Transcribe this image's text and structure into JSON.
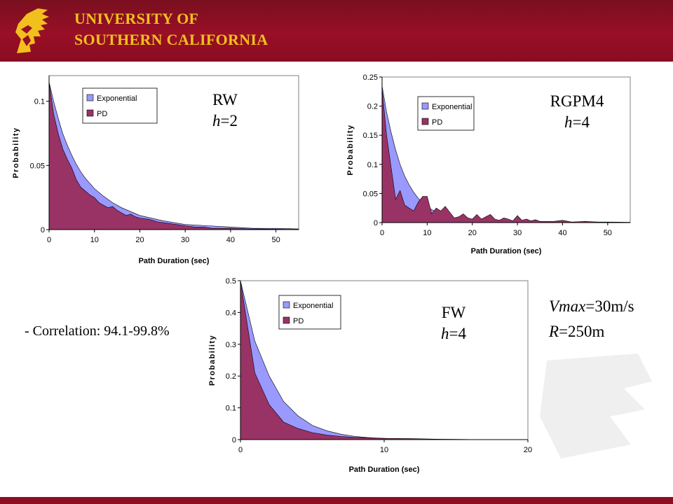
{
  "header": {
    "line1": "UNIVERSITY OF",
    "line2": "SOUTHERN CALIFORNIA"
  },
  "colors": {
    "header_bg": "#990f26",
    "header_text": "#f2c01d",
    "exponential": "#9999ff",
    "pd": "#993366"
  },
  "labels": {
    "rw": {
      "name": "RW",
      "h_var": "h",
      "h_val": "=2"
    },
    "rgpm": {
      "name": "RGPM4",
      "h_var": "h",
      "h_val": "=4"
    },
    "fw": {
      "name": "FW",
      "h_var": "h",
      "h_val": "=4"
    }
  },
  "correlation": "- Correlation: 94.1-99.8%",
  "params": {
    "vmax_var": "Vmax",
    "vmax_val": "=30m/s",
    "r_var": "R",
    "r_val": "=250m"
  },
  "chart_data": [
    {
      "type": "area",
      "xlabel": "Path Duration (sec)",
      "ylabel": "Probability",
      "xlim": [
        0,
        55
      ],
      "ylim": [
        0,
        0.12
      ],
      "xticks": [
        0,
        10,
        20,
        30,
        40,
        50
      ],
      "yticks": [
        0,
        0.05,
        0.1
      ],
      "ytick_labels": [
        "0",
        "0.05",
        "0.1"
      ],
      "legend": "top-left",
      "series": [
        {
          "name": "Exponential",
          "x": [
            0,
            1,
            2,
            3,
            4,
            5,
            6,
            7,
            8,
            10,
            12,
            14,
            16,
            18,
            20,
            25,
            30,
            35,
            40,
            45,
            50,
            55
          ],
          "values": [
            0.115,
            0.1,
            0.087,
            0.075,
            0.066,
            0.058,
            0.051,
            0.045,
            0.04,
            0.032,
            0.026,
            0.021,
            0.017,
            0.014,
            0.011,
            0.007,
            0.004,
            0.003,
            0.002,
            0.001,
            0.001,
            0.0005
          ]
        },
        {
          "name": "PD",
          "x": [
            0,
            1,
            2,
            3,
            4,
            5,
            6,
            7,
            8,
            9,
            10,
            11,
            12,
            13,
            14,
            15,
            16,
            17,
            18,
            19,
            20,
            22,
            24,
            26,
            28,
            30,
            32,
            34,
            36,
            38,
            40,
            42,
            44,
            46,
            48,
            50,
            52,
            55
          ],
          "values": [
            0.115,
            0.09,
            0.075,
            0.063,
            0.055,
            0.048,
            0.039,
            0.033,
            0.03,
            0.027,
            0.025,
            0.021,
            0.019,
            0.017,
            0.018,
            0.015,
            0.013,
            0.011,
            0.012,
            0.01,
            0.009,
            0.008,
            0.006,
            0.005,
            0.004,
            0.003,
            0.002,
            0.002,
            0.001,
            0.001,
            0.001,
            0.0008,
            0.0005,
            0.0005,
            0.0004,
            0.0003,
            0.0002,
            0.0002
          ]
        }
      ]
    },
    {
      "type": "area",
      "xlabel": "Path Duration (sec)",
      "ylabel": "Probability",
      "xlim": [
        0,
        55
      ],
      "ylim": [
        0,
        0.25
      ],
      "xticks": [
        0,
        10,
        20,
        30,
        40,
        50
      ],
      "yticks": [
        0,
        0.05,
        0.1,
        0.15,
        0.2,
        0.25
      ],
      "ytick_labels": [
        "0",
        "0.05",
        "0.1",
        "0.15",
        "0.2",
        "0.25"
      ],
      "legend": "top-left",
      "series": [
        {
          "name": "Exponential",
          "x": [
            0,
            1,
            2,
            3,
            4,
            5,
            6,
            7,
            8,
            9,
            10,
            12,
            14,
            16,
            18,
            20,
            25,
            30,
            35,
            40,
            50,
            55
          ],
          "values": [
            0.235,
            0.19,
            0.155,
            0.125,
            0.1,
            0.08,
            0.065,
            0.052,
            0.042,
            0.034,
            0.027,
            0.018,
            0.012,
            0.008,
            0.005,
            0.003,
            0.002,
            0.001,
            0.0005,
            0.0003,
            0.0002,
            0.0001
          ]
        },
        {
          "name": "PD",
          "x": [
            0,
            1,
            2,
            3,
            4,
            5,
            6,
            7,
            8,
            9,
            10,
            11,
            12,
            13,
            14,
            15,
            16,
            17,
            18,
            19,
            20,
            21,
            22,
            23,
            24,
            25,
            26,
            27,
            28,
            29,
            30,
            31,
            32,
            33,
            34,
            35,
            38,
            40,
            42,
            45,
            48,
            50,
            52,
            55
          ],
          "values": [
            0.23,
            0.15,
            0.095,
            0.04,
            0.055,
            0.03,
            0.025,
            0.02,
            0.035,
            0.045,
            0.045,
            0.015,
            0.025,
            0.02,
            0.028,
            0.018,
            0.008,
            0.01,
            0.015,
            0.008,
            0.006,
            0.014,
            0.006,
            0.01,
            0.014,
            0.006,
            0.004,
            0.008,
            0.006,
            0.003,
            0.012,
            0.004,
            0.006,
            0.003,
            0.005,
            0.002,
            0.002,
            0.004,
            0.001,
            0.002,
            0.001,
            0.001,
            0.0008,
            0.0005
          ]
        }
      ]
    },
    {
      "type": "area",
      "xlabel": "Path Duration (sec)",
      "ylabel": "Probability",
      "xlim": [
        0,
        20
      ],
      "ylim": [
        0,
        0.5
      ],
      "xticks": [
        0,
        10,
        20
      ],
      "yticks": [
        0,
        0.1,
        0.2,
        0.3,
        0.4,
        0.5
      ],
      "ytick_labels": [
        "0",
        "0.1",
        "0.2",
        "0.3",
        "0.4",
        "0.5"
      ],
      "legend": "top-left",
      "series": [
        {
          "name": "Exponential",
          "x": [
            0,
            1,
            2,
            3,
            4,
            5,
            6,
            7,
            8,
            9,
            10,
            12,
            14,
            16,
            18,
            20
          ],
          "values": [
            0.5,
            0.31,
            0.2,
            0.12,
            0.075,
            0.045,
            0.028,
            0.017,
            0.01,
            0.006,
            0.004,
            0.002,
            0.001,
            0.0005,
            0.0002,
            0.0001
          ]
        },
        {
          "name": "PD",
          "x": [
            0,
            1,
            2,
            3,
            4,
            5,
            6,
            7,
            8,
            9,
            10,
            12,
            14,
            16,
            18,
            20
          ],
          "values": [
            0.5,
            0.21,
            0.11,
            0.055,
            0.035,
            0.022,
            0.014,
            0.01,
            0.007,
            0.005,
            0.004,
            0.003,
            0.001,
            0.0005,
            0.0002,
            0.0001
          ]
        }
      ]
    }
  ]
}
